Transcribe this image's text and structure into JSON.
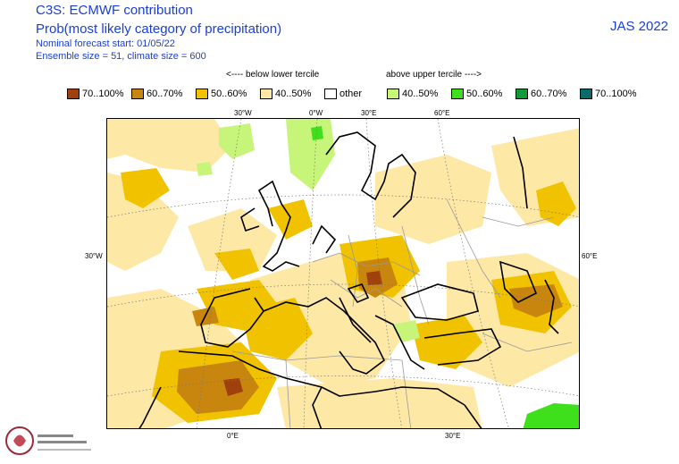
{
  "header": {
    "title": "C3S: ECMWF contribution",
    "subtitle": "Prob(most likely category of precipitation)",
    "forecast_start": "Nominal forecast start: 01/05/22",
    "ensemble": "Ensemble size = 51, climate size = 600",
    "season": "JAS 2022"
  },
  "legend": {
    "below_heading": "<---- below lower tercile",
    "above_heading": "above upper tercile ---->",
    "items": [
      {
        "label": "70..100%",
        "color": "#a0400c"
      },
      {
        "label": "60..70%",
        "color": "#c8860e"
      },
      {
        "label": "50..60%",
        "color": "#f1c200"
      },
      {
        "label": "40..50%",
        "color": "#fde8a6"
      },
      {
        "label": "other",
        "color": "#ffffff"
      },
      {
        "label": "40..50%",
        "color": "#c7f57a"
      },
      {
        "label": "50..60%",
        "color": "#3de01a"
      },
      {
        "label": "60..70%",
        "color": "#119a36"
      },
      {
        "label": "70..100%",
        "color": "#0b6b6b"
      }
    ]
  },
  "map": {
    "top_lon_labels": [
      "30°W",
      "0°W",
      "30°E",
      "60°E"
    ],
    "bottom_lon_labels": [
      "0°E",
      "30°E"
    ],
    "left_lat_label": "30°W",
    "right_lat_label": "60°E",
    "region": "Europe, North Africa and North Atlantic"
  },
  "logo": {
    "name": "Climate Change Service"
  }
}
